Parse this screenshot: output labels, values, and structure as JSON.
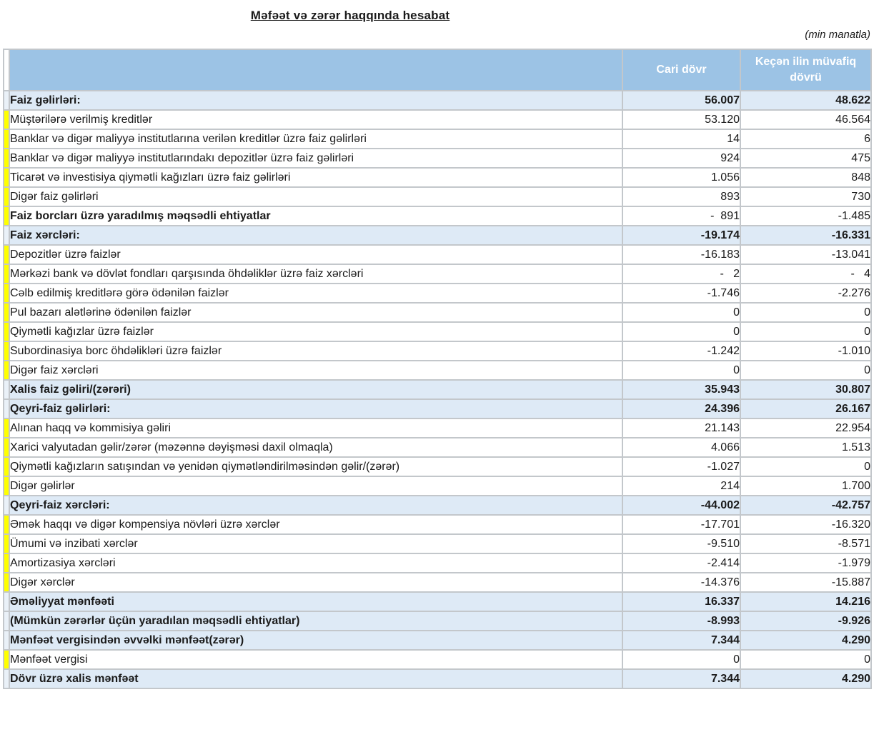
{
  "title": "Məfəət və zərər haqqında hesabat",
  "unit_note": "(min manatla)",
  "colors": {
    "header_bg": "#9cc3e5",
    "header_text": "#ffffff",
    "section_row_bg": "#deeaf6",
    "row_marker_yellow": "#ffff00",
    "grid_border": "#c3c7cb",
    "body_text": "#1a1a1a"
  },
  "table": {
    "header": {
      "current": "Cari dövr",
      "previous": "Keçən ilin müvafiq dövrü"
    },
    "rows": [
      {
        "label": "Faiz gəlirləri:",
        "current": "56.007",
        "previous": "48.622",
        "style": "section"
      },
      {
        "label": "Müştərilərə verilmiş kreditlər",
        "current": "53.120",
        "previous": "46.564",
        "style": "detail"
      },
      {
        "label": "Banklar və digər maliyyə institutlarına verilən kreditlər üzrə faiz gəlirləri",
        "current": "14",
        "previous": "6",
        "style": "detail"
      },
      {
        "label": "Banklar və digər maliyyə institutlarındakı depozitlər üzrə faiz gəlirləri",
        "current": "924",
        "previous": "475",
        "style": "detail"
      },
      {
        "label": "Ticarət və investisiya qiymətli kağızları üzrə faiz gəlirləri",
        "current": "1.056",
        "previous": "848",
        "style": "detail"
      },
      {
        "label": "Digər faiz gəlirləri",
        "current": "893",
        "previous": "730",
        "style": "detail"
      },
      {
        "label": "Faiz borcları üzrə yaradılmış məqsədli ehtiyatlar",
        "current": "-  891",
        "previous": "-1.485",
        "style": "detail-bold"
      },
      {
        "label": "Faiz xərcləri:",
        "current": "-19.174",
        "previous": "-16.331",
        "style": "section"
      },
      {
        "label": "Depozitlər üzrə faizlər",
        "current": "-16.183",
        "previous": "-13.041",
        "style": "detail"
      },
      {
        "label": "Mərkəzi bank və dövlət fondları qarşısında öhdəliklər üzrə faiz xərcləri",
        "current": "-   2",
        "previous": "-   4",
        "style": "detail"
      },
      {
        "label": "Cəlb edilmiş kreditlərə görə ödənilən faizlər",
        "current": "-1.746",
        "previous": "-2.276",
        "style": "detail"
      },
      {
        "label": "Pul bazarı alətlərinə ödənilən faizlər",
        "current": "0",
        "previous": "0",
        "style": "detail"
      },
      {
        "label": "Qiymətli kağızlar üzrə faizlər",
        "current": "0",
        "previous": "0",
        "style": "detail"
      },
      {
        "label": "Subordinasiya borc öhdəlikləri üzrə faizlər",
        "current": "-1.242",
        "previous": "-1.010",
        "style": "detail"
      },
      {
        "label": "Digər faiz xərcləri",
        "current": "0",
        "previous": "0",
        "style": "detail"
      },
      {
        "label": "Xalis faiz gəliri/(zərəri)",
        "current": "35.943",
        "previous": "30.807",
        "style": "section"
      },
      {
        "label": "Qeyri-faiz gəlirləri:",
        "current": "24.396",
        "previous": "26.167",
        "style": "section"
      },
      {
        "label": "Alınan haqq və kommisiya gəliri",
        "current": "21.143",
        "previous": "22.954",
        "style": "detail"
      },
      {
        "label": "Xarici valyutadan gəlir/zərər (məzənnə dəyişməsi daxil olmaqla)",
        "current": "4.066",
        "previous": "1.513",
        "style": "detail"
      },
      {
        "label": "Qiymətli kağızların satışından və yenidən qiymətləndirilməsindən gəlir/(zərər)",
        "current": "-1.027",
        "previous": "0",
        "style": "detail"
      },
      {
        "label": "Digər gəlirlər",
        "current": "214",
        "previous": "1.700",
        "style": "detail"
      },
      {
        "label": "Qeyri-faiz xərcləri:",
        "current": "-44.002",
        "previous": "-42.757",
        "style": "section"
      },
      {
        "label": "Əmək haqqı və digər kompensiya növləri üzrə xərclər",
        "current": "-17.701",
        "previous": "-16.320",
        "style": "detail"
      },
      {
        "label": "Ümumi və inzibati xərclər",
        "current": "-9.510",
        "previous": "-8.571",
        "style": "detail"
      },
      {
        "label": "Amortizasiya xərcləri",
        "current": "-2.414",
        "previous": "-1.979",
        "style": "detail"
      },
      {
        "label": "Digər xərclər",
        "current": "-14.376",
        "previous": "-15.887",
        "style": "detail"
      },
      {
        "label": "Əməliyyat mənfəəti",
        "current": "16.337",
        "previous": "14.216",
        "style": "section"
      },
      {
        "label": "(Mümkün zərərlər üçün yaradılan məqsədli ehtiyatlar)",
        "current": "-8.993",
        "previous": "-9.926",
        "style": "section"
      },
      {
        "label": "Mənfəət vergisindən əvvəlki mənfəət(zərər)",
        "current": "7.344",
        "previous": "4.290",
        "style": "section"
      },
      {
        "label": "Mənfəət vergisi",
        "current": "0",
        "previous": "0",
        "style": "detail"
      },
      {
        "label": "Dövr üzrə xalis mənfəət",
        "current": "7.344",
        "previous": "4.290",
        "style": "section"
      }
    ]
  }
}
